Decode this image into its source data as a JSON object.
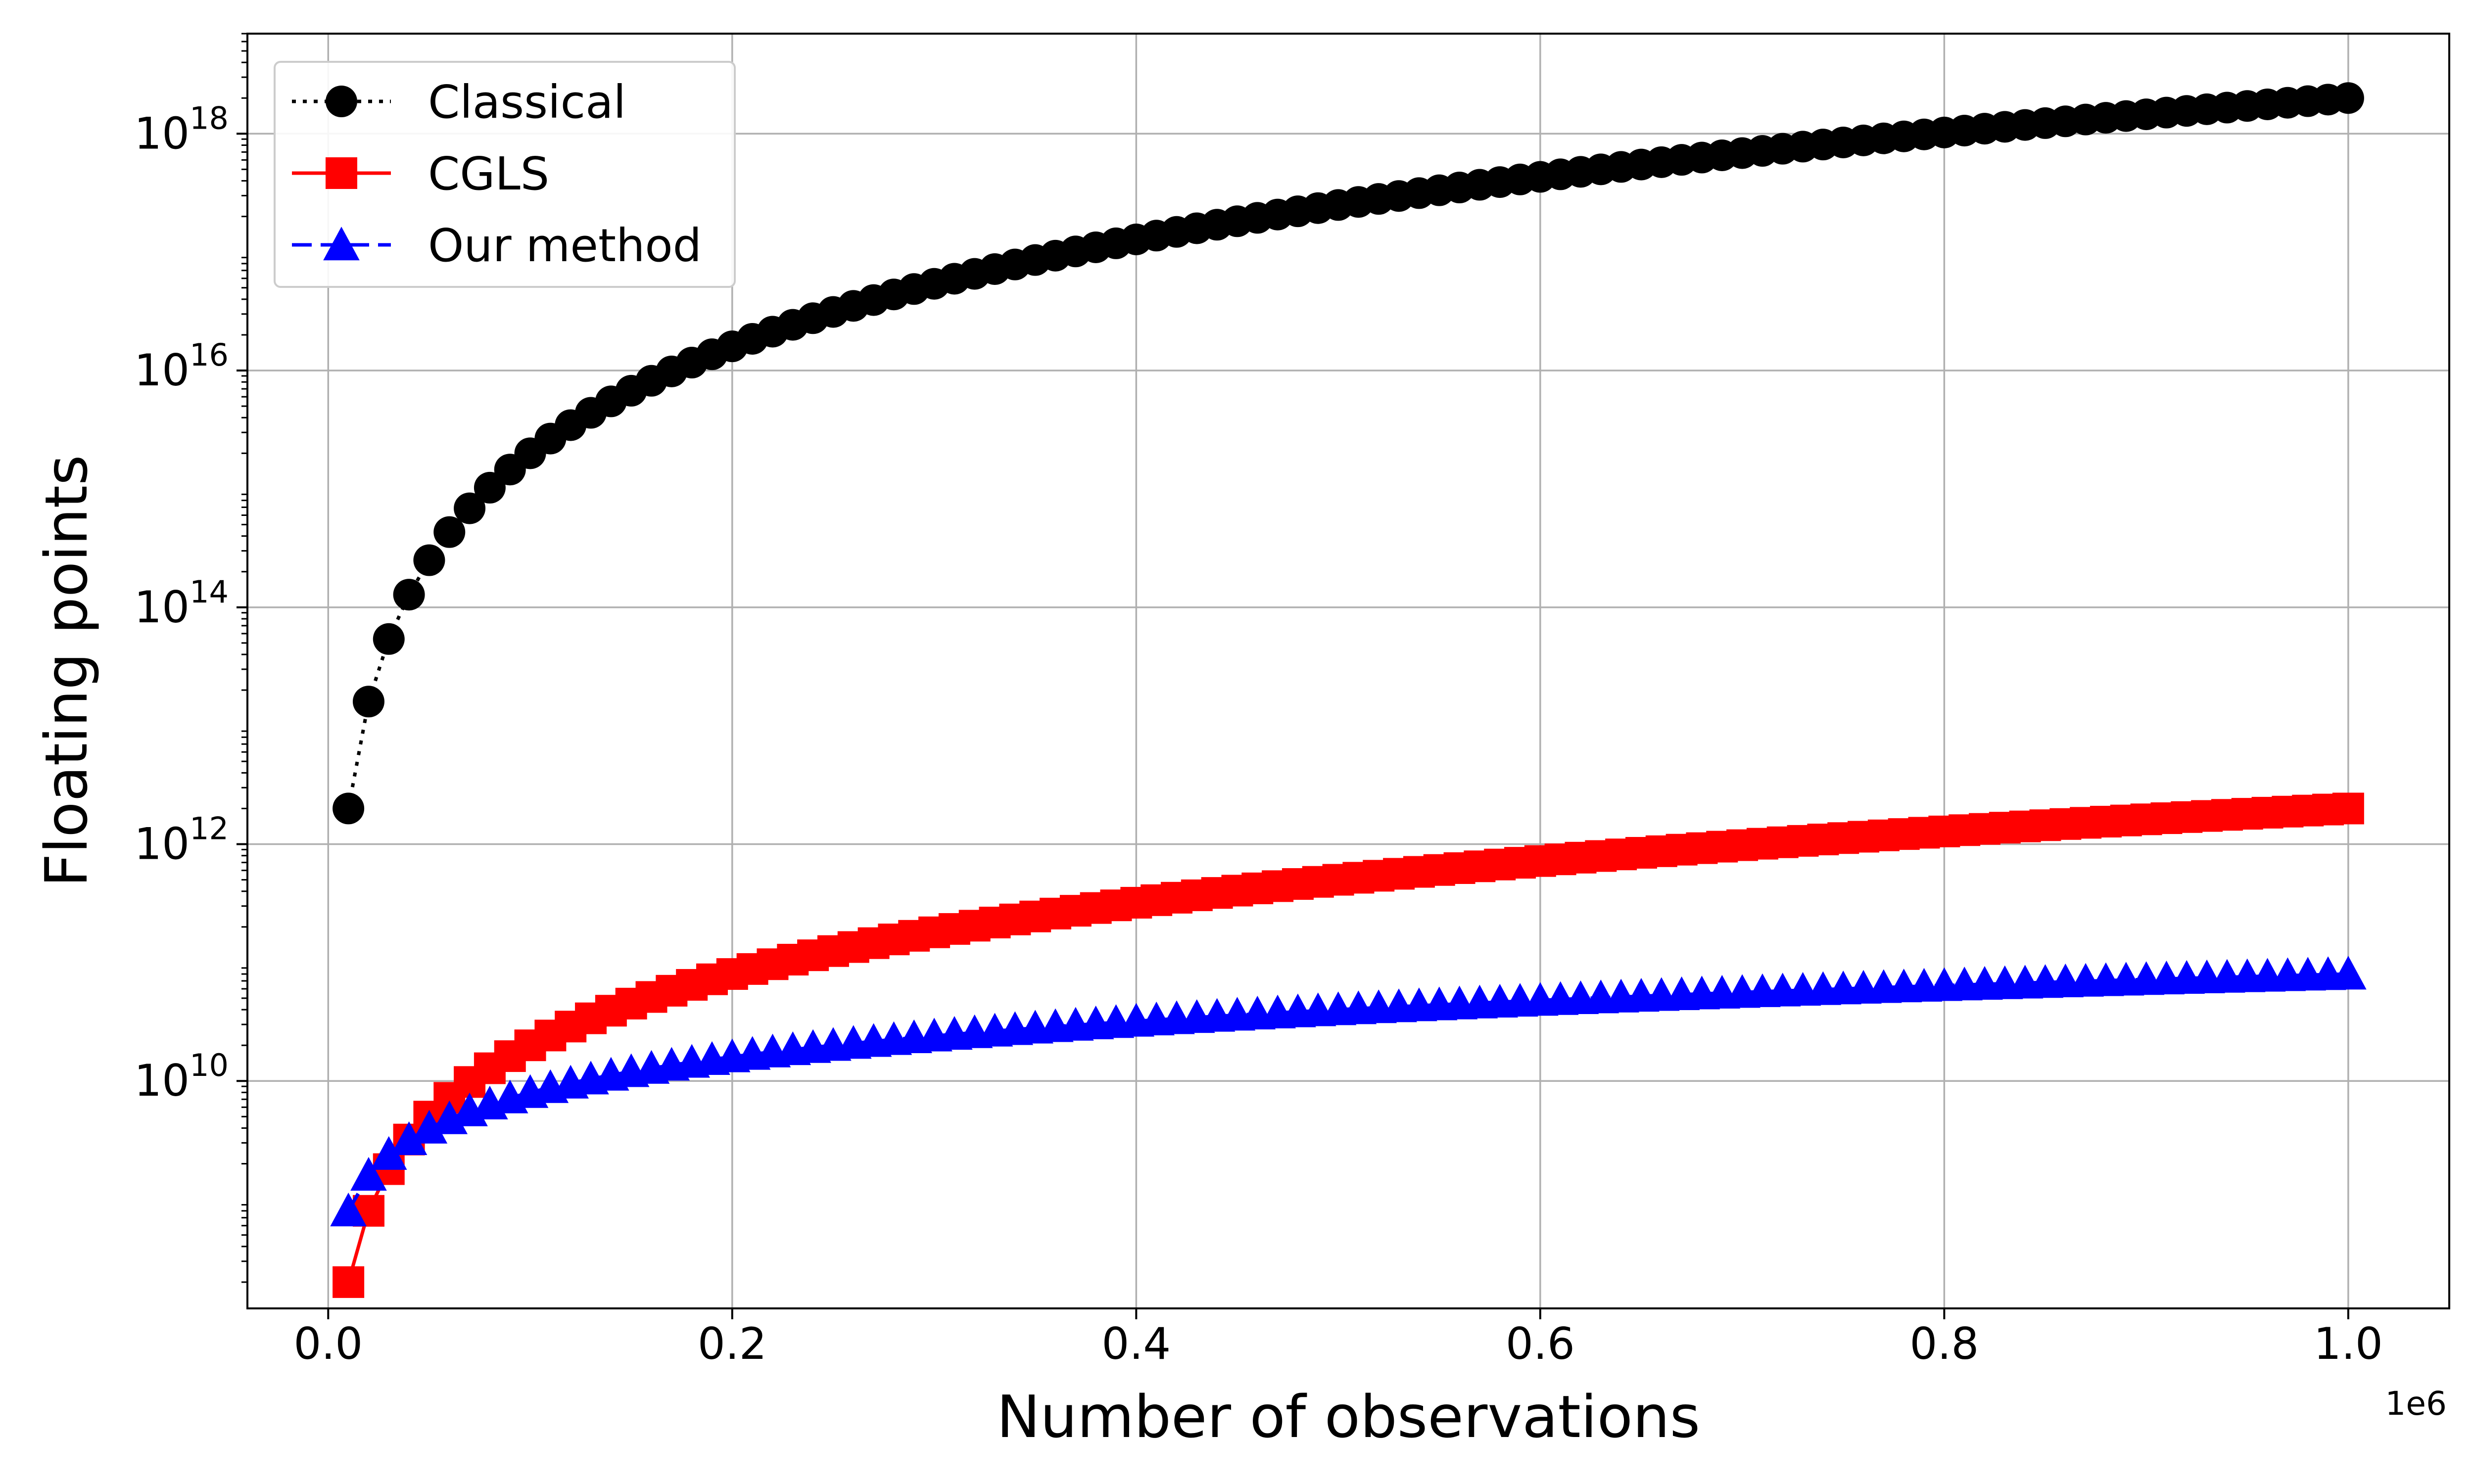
{
  "chart_data": {
    "type": "line",
    "xlabel": "Number of observations",
    "ylabel": "Floating points",
    "x_offset_label": "1e6",
    "x_scale": 1000000,
    "y_scale": "log",
    "xlim": [
      -40000,
      1050000
    ],
    "ylim": [
      120000000.0,
      7e+18
    ],
    "grid": true,
    "legend_position": "top-left",
    "x_ticks": [
      {
        "value": 0,
        "label": "0.0"
      },
      {
        "value": 200000,
        "label": "0.2"
      },
      {
        "value": 400000,
        "label": "0.4"
      },
      {
        "value": 600000,
        "label": "0.6"
      },
      {
        "value": 800000,
        "label": "0.8"
      },
      {
        "value": 1000000,
        "label": "1.0"
      }
    ],
    "y_ticks": [
      {
        "value": 10000000000.0,
        "base": "10",
        "exp": "10"
      },
      {
        "value": 1000000000000.0,
        "base": "10",
        "exp": "12"
      },
      {
        "value": 100000000000000.0,
        "base": "10",
        "exp": "14"
      },
      {
        "value": 1e+16,
        "base": "10",
        "exp": "16"
      },
      {
        "value": 1e+18,
        "base": "10",
        "exp": "18"
      }
    ],
    "x": {
      "start": 10000,
      "step": 10000,
      "count": 100
    },
    "series": [
      {
        "name": "Classical",
        "color": "#000000",
        "marker": "circle",
        "line_style": "dotted",
        "formula": "2*n^3",
        "coefficient": 2,
        "power": 3
      },
      {
        "name": "CGLS",
        "color": "#ff0000",
        "marker": "square",
        "line_style": "solid",
        "formula": "2*n^2",
        "coefficient": 2,
        "power": 2
      },
      {
        "name": "Our method",
        "color": "#0000ff",
        "marker": "triangle",
        "line_style": "dashed",
        "formula": "8e4*n",
        "coefficient": 80000,
        "power": 1
      }
    ]
  }
}
